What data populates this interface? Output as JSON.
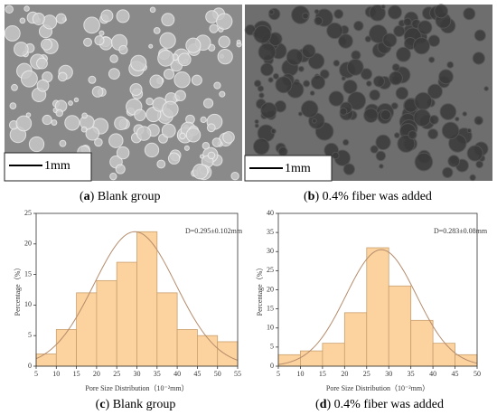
{
  "panels": [
    {
      "label": "a",
      "caption": "Blank group",
      "scale_bar": "1mm"
    },
    {
      "label": "b",
      "caption": "0.4% fiber was added",
      "scale_bar": "1mm"
    }
  ],
  "chart_data": [
    {
      "type": "histogram",
      "label": "c",
      "caption": "Blank group",
      "annotation": "D=0.295±0.102mm",
      "x_label": "Pore Size Distribution（10⁻²mm）",
      "y_label": "Percentage（%）",
      "bins": [
        5,
        10,
        15,
        20,
        25,
        30,
        35,
        40,
        45,
        50,
        55
      ],
      "values": [
        2,
        6,
        12,
        14,
        17,
        22,
        12,
        6,
        5,
        4
      ],
      "color": "#fcd39e",
      "edge_color": "#c8a070",
      "curve_color": "#b58c6c",
      "fit_curve": {
        "mean": 29.5,
        "sd": 10.2,
        "peak": 22
      },
      "xlim": [
        5,
        55
      ],
      "xticks": [
        5,
        10,
        15,
        20,
        25,
        30,
        35,
        40,
        45,
        50,
        55
      ],
      "ylim": [
        0,
        25
      ],
      "yticks": [
        0,
        5,
        10,
        15,
        20,
        25
      ]
    },
    {
      "type": "histogram",
      "label": "d",
      "caption": "0.4% fiber was added",
      "annotation": "D=0.283±0.08mm",
      "x_label": "Pore Size Distribution（10⁻²mm）",
      "y_label": "Percentage（%）",
      "bins": [
        5,
        10,
        15,
        20,
        25,
        30,
        35,
        40,
        45,
        50
      ],
      "values": [
        3,
        4,
        6,
        14,
        31,
        21,
        12,
        6,
        3
      ],
      "color": "#fcd39e",
      "edge_color": "#c8a070",
      "curve_color": "#b58c6c",
      "fit_curve": {
        "mean": 28.3,
        "sd": 8,
        "peak": 30.5
      },
      "xlim": [
        5,
        50
      ],
      "xticks": [
        5,
        10,
        15,
        20,
        25,
        30,
        35,
        40,
        45,
        50
      ],
      "ylim": [
        0,
        40
      ],
      "yticks": [
        0,
        5,
        10,
        15,
        20,
        25,
        30,
        35,
        40
      ]
    }
  ]
}
